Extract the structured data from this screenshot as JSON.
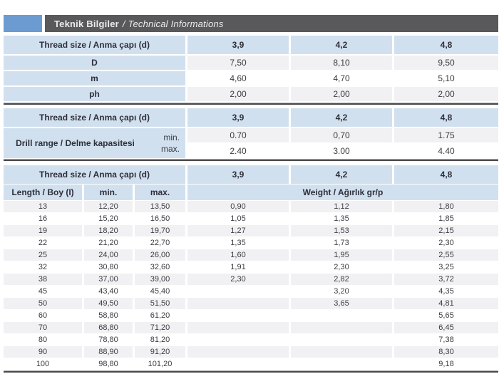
{
  "page": {
    "title_bold": "Teknik Bilgiler",
    "title_italic": "/ Technical Informations"
  },
  "colors": {
    "accent_blue_square": "#6c9bd2",
    "title_bar": "#59595b",
    "cell_blue": "#d1e0ef",
    "stripe_gray": "#f1f1f3",
    "rule_dark": "#4b4b4d"
  },
  "thread_header_label": "Thread size / Anma çapı (d)",
  "thread_sizes": [
    "3,9",
    "4,2",
    "4,8"
  ],
  "dimensions_table": {
    "rows": [
      {
        "label": "D",
        "values": [
          "7,50",
          "8,10",
          "9,50"
        ]
      },
      {
        "label": "m",
        "values": [
          "4,60",
          "4,70",
          "5,10"
        ]
      },
      {
        "label": "ph",
        "values": [
          "2,00",
          "2,00",
          "2,00"
        ]
      }
    ]
  },
  "drill_table": {
    "label": "Drill range / Delme kapasitesi",
    "min_label": "min.",
    "max_label": "max.",
    "min_values": [
      "0.70",
      "0,70",
      "1.75"
    ],
    "max_values": [
      "2.40",
      "3.00",
      "4.40"
    ]
  },
  "length_table": {
    "length_label": "Length / Boy (I)",
    "min_label": "min.",
    "max_label": "max.",
    "weight_label": "Weight / Ağırlık gr/p",
    "rows": [
      {
        "length": "13",
        "min": "12,20",
        "max": "13,50",
        "weights": [
          "0,90",
          "1,12",
          "1,80"
        ]
      },
      {
        "length": "16",
        "min": "15,20",
        "max": "16,50",
        "weights": [
          "1,05",
          "1,35",
          "1,85"
        ]
      },
      {
        "length": "19",
        "min": "18,20",
        "max": "19,70",
        "weights": [
          "1,27",
          "1,53",
          "2,15"
        ]
      },
      {
        "length": "22",
        "min": "21,20",
        "max": "22,70",
        "weights": [
          "1,35",
          "1,73",
          "2,30"
        ]
      },
      {
        "length": "25",
        "min": "24,00",
        "max": "26,00",
        "weights": [
          "1,60",
          "1,95",
          "2,55"
        ]
      },
      {
        "length": "32",
        "min": "30,80",
        "max": "32,60",
        "weights": [
          "1,91",
          "2,30",
          "3,25"
        ]
      },
      {
        "length": "38",
        "min": "37,00",
        "max": "39,00",
        "weights": [
          "2,30",
          "2,82",
          "3,72"
        ]
      },
      {
        "length": "45",
        "min": "43,40",
        "max": "45,40",
        "weights": [
          "",
          "3,20",
          "4,35"
        ]
      },
      {
        "length": "50",
        "min": "49,50",
        "max": "51,50",
        "weights": [
          "",
          "3,65",
          "4,81"
        ]
      },
      {
        "length": "60",
        "min": "58,80",
        "max": "61,20",
        "weights": [
          "",
          "",
          "5,65"
        ]
      },
      {
        "length": "70",
        "min": "68,80",
        "max": "71,20",
        "weights": [
          "",
          "",
          "6,45"
        ]
      },
      {
        "length": "80",
        "min": "78,80",
        "max": "81,20",
        "weights": [
          "",
          "",
          "7,38"
        ]
      },
      {
        "length": "90",
        "min": "88,90",
        "max": "91,20",
        "weights": [
          "",
          "",
          "8,30"
        ]
      },
      {
        "length": "100",
        "min": "98,80",
        "max": "101,20",
        "weights": [
          "",
          "",
          "9,18"
        ]
      }
    ]
  }
}
